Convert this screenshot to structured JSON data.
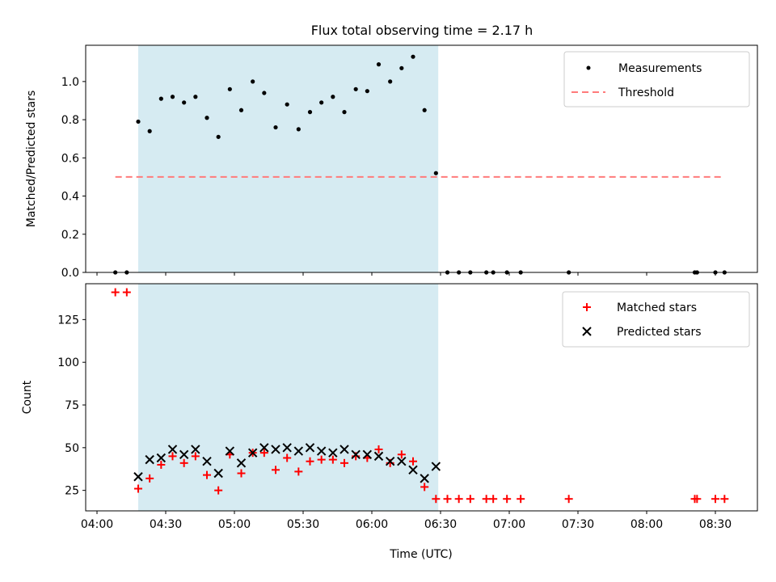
{
  "title": "Flux total observing time = 2.17 h",
  "chart_data": [
    {
      "type": "scatter",
      "ylabel": "Matched/Predicted stars",
      "ylim": [
        0,
        1.19
      ],
      "yticks": [
        0.0,
        0.2,
        0.4,
        0.6,
        0.8,
        1.0
      ],
      "ytick_labels": [
        "0.0",
        "0.2",
        "0.4",
        "0.6",
        "0.8",
        "1.0"
      ],
      "legend_position": "upper-right",
      "shaded_interval": [
        "04:18",
        "06:29"
      ],
      "threshold": {
        "name": "Threshold",
        "value": 0.5,
        "x_range": [
          "04:08",
          "08:34"
        ],
        "color": "#ff7b7b"
      },
      "series": [
        {
          "name": "Measurements",
          "marker": "dot",
          "color": "#000000",
          "points": [
            [
              "04:08",
              0.0
            ],
            [
              "04:13",
              0.0
            ],
            [
              "04:18",
              0.79
            ],
            [
              "04:23",
              0.74
            ],
            [
              "04:28",
              0.91
            ],
            [
              "04:33",
              0.92
            ],
            [
              "04:38",
              0.89
            ],
            [
              "04:43",
              0.92
            ],
            [
              "04:48",
              0.81
            ],
            [
              "04:53",
              0.71
            ],
            [
              "04:58",
              0.96
            ],
            [
              "05:03",
              0.85
            ],
            [
              "05:08",
              1.0
            ],
            [
              "05:13",
              0.94
            ],
            [
              "05:18",
              0.76
            ],
            [
              "05:23",
              0.88
            ],
            [
              "05:28",
              0.75
            ],
            [
              "05:33",
              0.84
            ],
            [
              "05:38",
              0.89
            ],
            [
              "05:43",
              0.92
            ],
            [
              "05:48",
              0.84
            ],
            [
              "05:53",
              0.96
            ],
            [
              "05:58",
              0.95
            ],
            [
              "06:03",
              1.09
            ],
            [
              "06:08",
              1.0
            ],
            [
              "06:13",
              1.07
            ],
            [
              "06:18",
              1.13
            ],
            [
              "06:23",
              0.85
            ],
            [
              "06:28",
              0.52
            ],
            [
              "06:33",
              0.0
            ],
            [
              "06:38",
              0.0
            ],
            [
              "06:43",
              0.0
            ],
            [
              "06:50",
              0.0
            ],
            [
              "06:53",
              0.0
            ],
            [
              "06:59",
              0.0
            ],
            [
              "07:05",
              0.0
            ],
            [
              "07:26",
              0.0
            ],
            [
              "08:21",
              0.0
            ],
            [
              "08:22",
              0.0
            ],
            [
              "08:30",
              0.0
            ],
            [
              "08:34",
              0.0
            ]
          ]
        }
      ]
    },
    {
      "type": "scatter",
      "xlabel": "Time (UTC)",
      "ylabel": "Count",
      "ylim": [
        13,
        146
      ],
      "yticks": [
        25,
        50,
        75,
        100,
        125
      ],
      "ytick_labels": [
        "25",
        "50",
        "75",
        "100",
        "125"
      ],
      "xticks": [
        "04:00",
        "04:30",
        "05:00",
        "05:30",
        "06:00",
        "06:30",
        "07:00",
        "07:30",
        "08:00",
        "08:30"
      ],
      "legend_position": "upper-right",
      "shaded_interval": [
        "04:18",
        "06:29"
      ],
      "series": [
        {
          "name": "Matched stars",
          "marker": "plus",
          "color": "#ff0000",
          "points": [
            [
              "04:08",
              141
            ],
            [
              "04:13",
              141
            ],
            [
              "04:18",
              26
            ],
            [
              "04:23",
              32
            ],
            [
              "04:28",
              40
            ],
            [
              "04:33",
              45
            ],
            [
              "04:38",
              41
            ],
            [
              "04:43",
              45
            ],
            [
              "04:48",
              34
            ],
            [
              "04:53",
              25
            ],
            [
              "04:58",
              46
            ],
            [
              "05:03",
              35
            ],
            [
              "05:08",
              47
            ],
            [
              "05:13",
              47
            ],
            [
              "05:18",
              37
            ],
            [
              "05:23",
              44
            ],
            [
              "05:28",
              36
            ],
            [
              "05:33",
              42
            ],
            [
              "05:38",
              43
            ],
            [
              "05:43",
              43
            ],
            [
              "05:48",
              41
            ],
            [
              "05:53",
              45
            ],
            [
              "05:58",
              44
            ],
            [
              "06:03",
              49
            ],
            [
              "06:08",
              41
            ],
            [
              "06:13",
              46
            ],
            [
              "06:18",
              42
            ],
            [
              "06:23",
              27
            ],
            [
              "06:28",
              20
            ],
            [
              "06:33",
              20
            ],
            [
              "06:38",
              20
            ],
            [
              "06:43",
              20
            ],
            [
              "06:50",
              20
            ],
            [
              "06:53",
              20
            ],
            [
              "06:59",
              20
            ],
            [
              "07:05",
              20
            ],
            [
              "07:26",
              20
            ],
            [
              "08:21",
              20
            ],
            [
              "08:22",
              20
            ],
            [
              "08:30",
              20
            ],
            [
              "08:34",
              20
            ]
          ]
        },
        {
          "name": "Predicted stars",
          "marker": "x",
          "color": "#000000",
          "points": [
            [
              "04:18",
              33
            ],
            [
              "04:23",
              43
            ],
            [
              "04:28",
              44
            ],
            [
              "04:33",
              49
            ],
            [
              "04:38",
              46
            ],
            [
              "04:43",
              49
            ],
            [
              "04:48",
              42
            ],
            [
              "04:53",
              35
            ],
            [
              "04:58",
              48
            ],
            [
              "05:03",
              41
            ],
            [
              "05:08",
              47
            ],
            [
              "05:13",
              50
            ],
            [
              "05:18",
              49
            ],
            [
              "05:23",
              50
            ],
            [
              "05:28",
              48
            ],
            [
              "05:33",
              50
            ],
            [
              "05:38",
              48
            ],
            [
              "05:43",
              47
            ],
            [
              "05:48",
              49
            ],
            [
              "05:53",
              46
            ],
            [
              "05:58",
              46
            ],
            [
              "06:03",
              45
            ],
            [
              "06:08",
              42
            ],
            [
              "06:13",
              42
            ],
            [
              "06:18",
              37
            ],
            [
              "06:23",
              32
            ],
            [
              "06:28",
              39
            ]
          ]
        }
      ]
    }
  ]
}
